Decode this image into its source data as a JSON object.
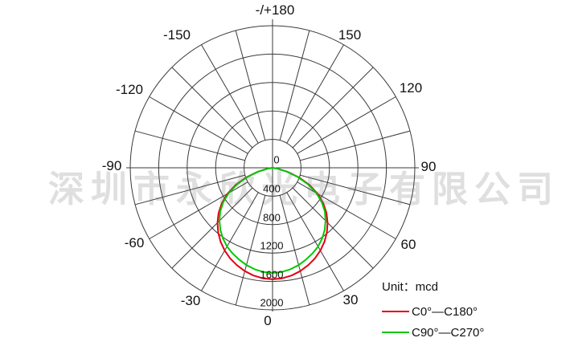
{
  "watermark": "深圳市永欣光电子有限公司",
  "legend": {
    "unit_label": "Unit：mcd",
    "series": [
      {
        "label": "C0°—C180°",
        "color": "#e60012"
      },
      {
        "label": "C90°—C270°",
        "color": "#00c800"
      }
    ]
  },
  "chart_data": {
    "type": "line",
    "subtype": "polar-photometric",
    "unit": "mcd",
    "grid_color": "#3a3a3a",
    "angle_step_deg": 15,
    "angle_labels": [
      "-/+180",
      "-150",
      "150",
      "-120",
      "120",
      "-90",
      "90",
      "-60",
      "60",
      "-30",
      "30",
      "0"
    ],
    "ring_values": [
      0,
      400,
      800,
      1200,
      1600,
      2000
    ],
    "radial_max": 2000,
    "series": [
      {
        "name": "C0°—C180°",
        "color": "#e60012",
        "angles_deg": [
          -85,
          -80,
          -75,
          -70,
          -65,
          -60,
          -55,
          -50,
          -45,
          -40,
          -35,
          -30,
          -25,
          -20,
          -15,
          -10,
          -5,
          0,
          5,
          10,
          15,
          20,
          25,
          30,
          35,
          40,
          45,
          50,
          55,
          60,
          65,
          70,
          75,
          80,
          85
        ],
        "values_mcd": [
          0,
          75,
          215,
          395,
          575,
          735,
          870,
          990,
          1095,
          1188,
          1272,
          1345,
          1408,
          1460,
          1505,
          1540,
          1562,
          1570,
          1562,
          1540,
          1505,
          1460,
          1408,
          1345,
          1272,
          1188,
          1095,
          990,
          870,
          735,
          575,
          395,
          215,
          75,
          0
        ]
      },
      {
        "name": "C90°—C270°",
        "color": "#00c800",
        "angles_deg": [
          -85,
          -80,
          -75,
          -70,
          -65,
          -60,
          -55,
          -50,
          -45,
          -40,
          -35,
          -30,
          -25,
          -20,
          -15,
          -10,
          -5,
          0,
          5,
          10,
          15,
          20,
          25,
          30,
          35,
          40,
          45,
          50,
          55,
          60,
          65,
          70,
          75,
          80,
          85
        ],
        "values_mcd": [
          0,
          70,
          205,
          375,
          550,
          710,
          845,
          960,
          1055,
          1140,
          1215,
          1280,
          1330,
          1375,
          1418,
          1450,
          1472,
          1480,
          1472,
          1450,
          1418,
          1375,
          1330,
          1280,
          1215,
          1140,
          1055,
          960,
          845,
          710,
          550,
          375,
          205,
          70,
          0
        ]
      }
    ]
  }
}
